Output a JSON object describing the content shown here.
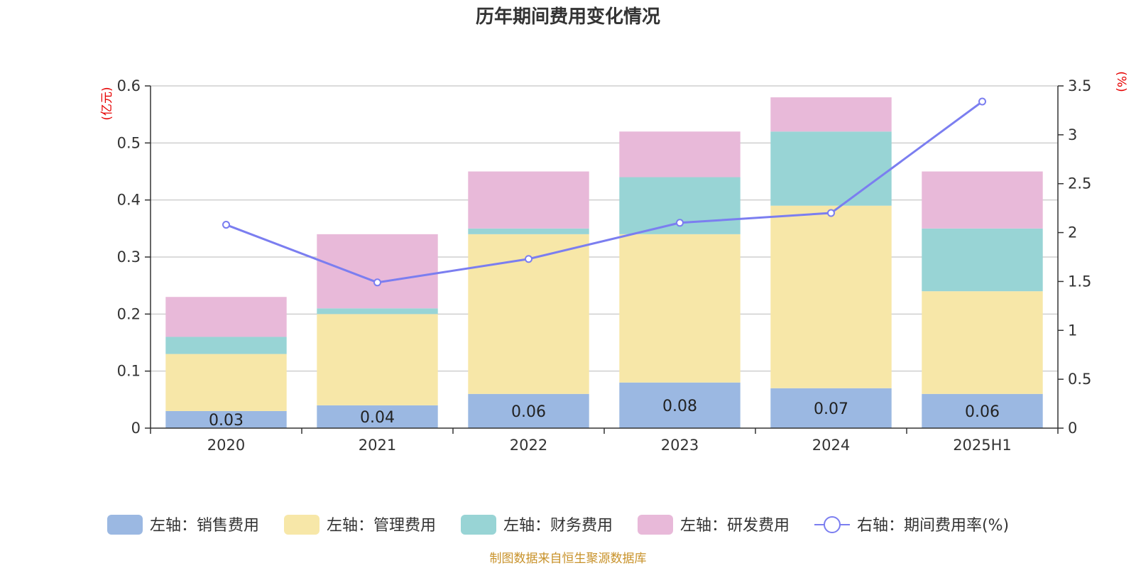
{
  "chart_data": {
    "type": "bar",
    "stacked": true,
    "title": "历年期间费用变化情况",
    "categories": [
      "2020",
      "2021",
      "2022",
      "2023",
      "2024",
      "2025H1"
    ],
    "y_left": {
      "unit": "(亿元)",
      "ylim": [
        0,
        0.6
      ],
      "ticks": [
        "0",
        "0.1",
        "0.2",
        "0.3",
        "0.4",
        "0.5",
        "0.6"
      ]
    },
    "y_right": {
      "unit": "(%)",
      "ylim": [
        0,
        3.5
      ],
      "ticks": [
        "0",
        "0.5",
        "1",
        "1.5",
        "2",
        "2.5",
        "3",
        "3.5"
      ]
    },
    "grid": true,
    "legend_position": "bottom",
    "series": [
      {
        "name": "左轴：销售费用",
        "axis": "left",
        "type": "bar",
        "color": "#9bb8e2",
        "values": [
          0.03,
          0.04,
          0.06,
          0.08,
          0.07,
          0.06
        ],
        "labels": [
          "0.03",
          "0.04",
          "0.06",
          "0.08",
          "0.07",
          "0.06"
        ]
      },
      {
        "name": "左轴：管理费用",
        "axis": "left",
        "type": "bar",
        "color": "#f7e7a8",
        "values": [
          0.1,
          0.16,
          0.28,
          0.26,
          0.32,
          0.18
        ]
      },
      {
        "name": "左轴：财务费用",
        "axis": "left",
        "type": "bar",
        "color": "#98d4d5",
        "values": [
          0.03,
          0.01,
          0.01,
          0.1,
          0.13,
          0.11
        ]
      },
      {
        "name": "左轴：研发费用",
        "axis": "left",
        "type": "bar",
        "color": "#e8b9d9",
        "values": [
          0.07,
          0.13,
          0.1,
          0.08,
          0.06,
          0.1
        ]
      },
      {
        "name": "右轴：期间费用率(%)",
        "axis": "right",
        "type": "line",
        "color": "#7b7ef0",
        "values": [
          2.08,
          1.49,
          1.73,
          2.1,
          2.2,
          3.34
        ]
      }
    ],
    "source": "制图数据来自恒生聚源数据库"
  }
}
